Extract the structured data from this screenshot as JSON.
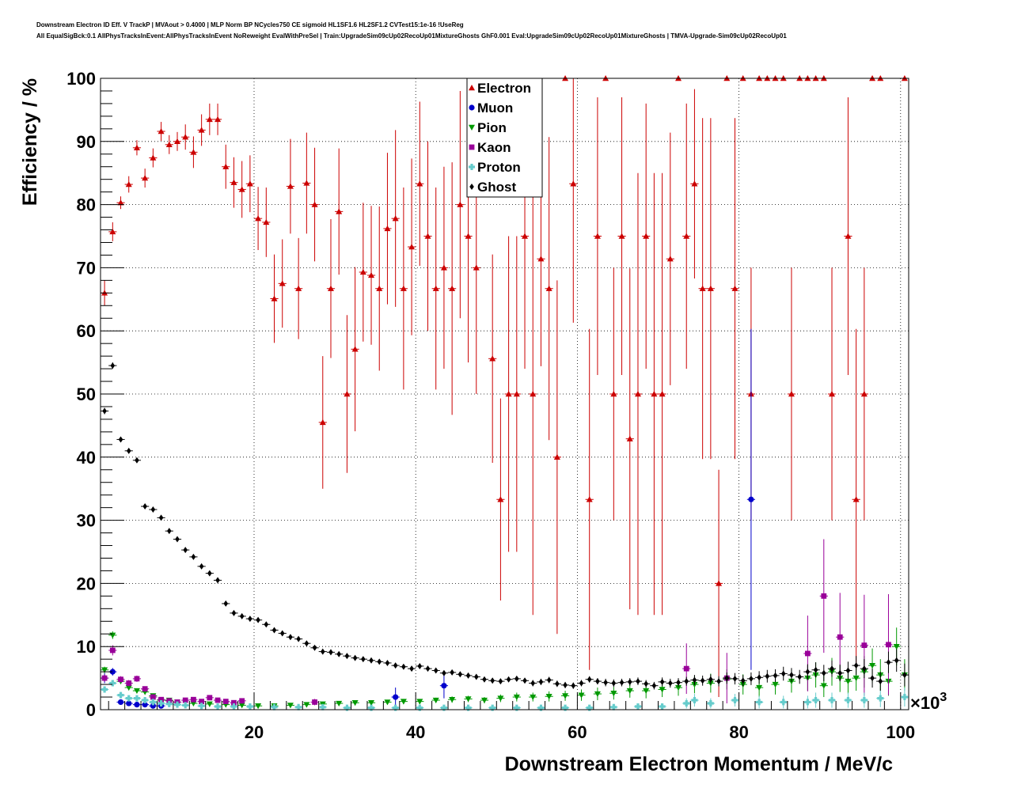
{
  "header": {
    "line1": "Downstream Electron ID Eff. V TrackP | MVAout > 0.4000 | MLP Norm BP NCycles750 CE sigmoid HL1SF1.6 HL2SF1.2 CVTest15:1e-16 !UseReg",
    "line2": "All EqualSigBck:0.1 AllPhysTracksInEvent:AllPhysTracksInEvent NoReweight EvalWithPreSel | Train:UpgradeSim09cUp02RecoUp01MixtureGhosts GhF0.001 Eval:UpgradeSim09cUp02RecoUp01MixtureGhosts | TMVA-Upgrade-Sim09cUp02RecoUp01"
  },
  "chart_data": {
    "type": "scatter",
    "xlabel": "Downstream Electron Momentum / MeV/c",
    "ylabel": "Efficiency / %",
    "x_multiplier": "×10",
    "x_multiplier_exp": "3",
    "xlim": [
      1,
      101
    ],
    "ylim": [
      0,
      100
    ],
    "x_ticks": [
      20,
      40,
      60,
      80,
      100
    ],
    "y_ticks": [
      0,
      10,
      20,
      30,
      40,
      50,
      60,
      70,
      80,
      90,
      100
    ],
    "grid": true,
    "legend_position": "top-center",
    "series": [
      {
        "name": "Electron",
        "color": "#cc0000",
        "marker": "triangle-up",
        "x": [
          1.5,
          2.5,
          3.5,
          4.5,
          5.5,
          6.5,
          7.5,
          8.5,
          9.5,
          10.5,
          11.5,
          12.5,
          13.5,
          14.5,
          15.5,
          16.5,
          17.5,
          18.5,
          19.5,
          20.5,
          21.5,
          22.5,
          23.5,
          24.5,
          25.5,
          26.5,
          27.5,
          28.5,
          29.5,
          30.5,
          31.5,
          32.5,
          33.5,
          34.5,
          35.5,
          36.5,
          37.5,
          38.5,
          39.5,
          40.5,
          41.5,
          42.5,
          43.5,
          44.5,
          45.5,
          46.5,
          47.5,
          49.5,
          50.5,
          51.5,
          52.5,
          53.5,
          54.5,
          55.5,
          56.5,
          57.5,
          58.5,
          59.5,
          61.5,
          62.5,
          63.5,
          64.5,
          65.5,
          66.5,
          67.5,
          68.5,
          69.5,
          70.5,
          71.5,
          72.5,
          73.5,
          74.5,
          75.5,
          76.5,
          77.5,
          78.5,
          79.5,
          80.5,
          81.5,
          82.5,
          83.5,
          84.5,
          85.5,
          86.5,
          87.5,
          88.5,
          89.5,
          90.5,
          91.5,
          93.5,
          94.5,
          95.5,
          96.5,
          97.5,
          100.5
        ],
        "y": [
          66,
          75.7,
          80.3,
          83.2,
          89,
          84.2,
          87.4,
          91.6,
          89.5,
          90,
          90.7,
          88.3,
          91.8,
          93.5,
          93.5,
          86,
          83.5,
          82.4,
          83.3,
          77.8,
          77.2,
          65.1,
          67.5,
          82.9,
          66.7,
          83.4,
          80,
          45.5,
          66.7,
          78.9,
          50,
          57.1,
          69.3,
          68.8,
          66.7,
          76.2,
          77.8,
          66.7,
          73.3,
          83.3,
          75,
          66.7,
          70,
          66.7,
          80,
          75,
          70,
          55.6,
          33.3,
          50,
          50,
          75,
          50,
          71.4,
          66.7,
          40,
          100,
          83.3,
          33.3,
          75,
          100,
          50,
          75,
          42.9,
          50,
          75,
          50,
          50,
          71.4,
          100,
          75,
          83.3,
          66.7,
          66.7,
          20,
          100,
          66.7,
          100,
          50,
          100,
          100,
          100,
          100,
          50,
          100,
          100,
          100,
          100,
          50,
          75,
          33.3,
          50,
          100,
          100,
          100
        ],
        "err": [
          2,
          1.5,
          1,
          1.3,
          1.2,
          1.5,
          1.5,
          1.5,
          1.5,
          1.5,
          2,
          2.5,
          2.5,
          2.5,
          2.5,
          3.5,
          4,
          4.5,
          4.5,
          5,
          5.5,
          7,
          7,
          7.5,
          8,
          8,
          9,
          10.5,
          11,
          10,
          12.5,
          13,
          11,
          11,
          13,
          12,
          14,
          16,
          14,
          13,
          15,
          16,
          16,
          20,
          18,
          20,
          20,
          16.5,
          16,
          25,
          25,
          21,
          35,
          17,
          24,
          28,
          0,
          22,
          27,
          22,
          0,
          20,
          22,
          27,
          35,
          21,
          35,
          35,
          20,
          0,
          21,
          15,
          27,
          27,
          18,
          0,
          27,
          0,
          20,
          0,
          0,
          0,
          0,
          20,
          0,
          0,
          0,
          0,
          20,
          22,
          27,
          20,
          0,
          0,
          0
        ]
      },
      {
        "name": "Muon",
        "color": "#0000cc",
        "marker": "circle",
        "x": [
          1.5,
          2.5,
          3.5,
          4.5,
          5.5,
          6.5,
          7.5,
          8.5,
          37.5,
          43.5,
          81.5
        ],
        "y": [
          5,
          6,
          1.2,
          1,
          0.8,
          0.8,
          0.6,
          0.6,
          2,
          3.8,
          33.3
        ],
        "err": [
          0.8,
          0.6,
          0.3,
          0.3,
          0.3,
          0.3,
          0.3,
          0.3,
          1.5,
          2,
          27
        ]
      },
      {
        "name": "Pion",
        "color": "#009900",
        "marker": "triangle-down",
        "x": [
          1.5,
          2.5,
          3.5,
          4.5,
          5.5,
          6.5,
          7.5,
          8.5,
          9.5,
          10.5,
          12.5,
          14.5,
          16.5,
          18.5,
          20.5,
          22.5,
          24.5,
          26.5,
          28.5,
          30.5,
          32.5,
          34.5,
          36.5,
          38.5,
          40.5,
          42.5,
          44.5,
          46.5,
          48.5,
          50.5,
          52.5,
          54.5,
          56.5,
          58.5,
          60.5,
          62.5,
          64.5,
          66.5,
          68.5,
          70.5,
          72.5,
          74.5,
          76.5,
          78.5,
          80.5,
          82.5,
          84.5,
          86.5,
          88.5,
          89.5,
          90.5,
          91.5,
          92.5,
          93.5,
          94.5,
          95.5,
          96.5,
          97.5,
          98.5,
          99.5,
          100.5
        ],
        "y": [
          6.3,
          11.8,
          4.5,
          3.5,
          3,
          2.8,
          2.2,
          1.5,
          1.5,
          1.2,
          1,
          0.9,
          0.8,
          0.7,
          0.6,
          0.6,
          0.7,
          0.8,
          0.9,
          1,
          1.1,
          1.1,
          1.2,
          1.3,
          1.3,
          1.5,
          1.6,
          1.7,
          1.5,
          1.8,
          2,
          2,
          2.1,
          2.2,
          2.3,
          2.5,
          2.6,
          3,
          3,
          3.2,
          3.5,
          4,
          4.2,
          4.8,
          4,
          3.5,
          4,
          4.5,
          5,
          5.5,
          3.8,
          6,
          5,
          4.5,
          5,
          6,
          7,
          5.5,
          4.5,
          10,
          5.5
        ],
        "err": [
          0.5,
          0.6,
          0.4,
          0.3,
          0.3,
          0.3,
          0.3,
          0.2,
          0.2,
          0.2,
          0.2,
          0.2,
          0.2,
          0.2,
          0.2,
          0.2,
          0.2,
          0.2,
          0.3,
          0.3,
          0.3,
          0.3,
          0.3,
          0.4,
          0.4,
          0.4,
          0.5,
          0.5,
          0.5,
          0.6,
          0.7,
          0.7,
          0.8,
          0.8,
          0.9,
          1,
          1,
          1.1,
          1.2,
          1.2,
          1.3,
          1.4,
          1.5,
          1.6,
          1.6,
          1.5,
          1.6,
          1.8,
          2,
          2,
          1.8,
          2.2,
          2.2,
          2,
          2,
          2.5,
          2.7,
          2.5,
          2.3,
          3,
          2.5
        ]
      },
      {
        "name": "Kaon",
        "color": "#990099",
        "marker": "square",
        "x": [
          1.5,
          2.5,
          3.5,
          4.5,
          5.5,
          6.5,
          7.5,
          8.5,
          9.5,
          10.5,
          11.5,
          12.5,
          13.5,
          14.5,
          15.5,
          16.5,
          17.5,
          18.5,
          27.5,
          73.5,
          78.5,
          88.5,
          90.5,
          92.5,
          95.5,
          98.5
        ],
        "y": [
          5,
          9.4,
          4.8,
          4.2,
          4.9,
          3.3,
          2,
          1.6,
          1.4,
          1.2,
          1.5,
          1.6,
          1.3,
          1.9,
          1.5,
          1.3,
          1.1,
          1.4,
          1.2,
          6.5,
          5,
          8.9,
          18,
          11.5,
          10.2,
          10.3
        ],
        "err": [
          0.6,
          0.8,
          0.5,
          0.5,
          0.5,
          0.4,
          0.3,
          0.3,
          0.3,
          0.3,
          0.3,
          0.3,
          0.3,
          0.3,
          0.3,
          0.3,
          0.3,
          0.3,
          0.5,
          4,
          4,
          6,
          9,
          7,
          8,
          8
        ]
      },
      {
        "name": "Proton",
        "color": "#66cccc",
        "marker": "cross",
        "x": [
          1.5,
          2.5,
          3.5,
          4.5,
          5.5,
          6.5,
          7.5,
          8.5,
          9.5,
          10.5,
          11.5,
          13.5,
          15.5,
          17.5,
          19.5,
          22.5,
          25.5,
          28.5,
          31.5,
          34.5,
          37.5,
          40.5,
          43.5,
          46.5,
          49.5,
          52.5,
          55.5,
          58.5,
          61.5,
          64.5,
          67.5,
          70.5,
          73.5,
          74.5,
          76.5,
          79.5,
          82.5,
          85.5,
          88.5,
          89.5,
          91.5,
          93.5,
          95.5,
          97.5,
          100.5
        ],
        "y": [
          3.2,
          4.2,
          2.3,
          1.8,
          1.8,
          1.5,
          1.2,
          1,
          0.9,
          0.8,
          0.7,
          0.6,
          0.5,
          0.5,
          0.5,
          0.4,
          0.4,
          0.4,
          0.3,
          0.3,
          0.3,
          0.3,
          0.3,
          0.3,
          0.3,
          0.3,
          0.3,
          0.3,
          0.3,
          0.4,
          0.5,
          0.5,
          1,
          1.5,
          1,
          1.5,
          1.2,
          1.2,
          1.2,
          1.5,
          1.5,
          1.5,
          1.5,
          1.8,
          2
        ],
        "err": [
          0.5,
          0.5,
          0.3,
          0.3,
          0.3,
          0.2,
          0.2,
          0.2,
          0.2,
          0.2,
          0.2,
          0.2,
          0.2,
          0.2,
          0.2,
          0.2,
          0.2,
          0.2,
          0.2,
          0.2,
          0.2,
          0.2,
          0.2,
          0.2,
          0.2,
          0.2,
          0.2,
          0.2,
          0.2,
          0.3,
          0.4,
          0.4,
          0.8,
          1,
          0.8,
          1,
          1,
          1,
          1,
          1.2,
          1.2,
          1.2,
          1.2,
          1.4,
          1.5
        ]
      },
      {
        "name": "Ghost",
        "color": "#000000",
        "marker": "diamond",
        "x": [
          1.5,
          2.5,
          3.5,
          4.5,
          5.5,
          6.5,
          7.5,
          8.5,
          9.5,
          10.5,
          11.5,
          12.5,
          13.5,
          14.5,
          15.5,
          16.5,
          17.5,
          18.5,
          19.5,
          20.5,
          21.5,
          22.5,
          23.5,
          24.5,
          25.5,
          26.5,
          27.5,
          28.5,
          29.5,
          30.5,
          31.5,
          32.5,
          33.5,
          34.5,
          35.5,
          36.5,
          37.5,
          38.5,
          39.5,
          40.5,
          41.5,
          42.5,
          43.5,
          44.5,
          45.5,
          46.5,
          47.5,
          48.5,
          49.5,
          50.5,
          51.5,
          52.5,
          53.5,
          54.5,
          55.5,
          56.5,
          57.5,
          58.5,
          59.5,
          60.5,
          61.5,
          62.5,
          63.5,
          64.5,
          65.5,
          66.5,
          67.5,
          68.5,
          69.5,
          70.5,
          71.5,
          72.5,
          73.5,
          74.5,
          75.5,
          76.5,
          77.5,
          78.5,
          79.5,
          80.5,
          81.5,
          82.5,
          83.5,
          84.5,
          85.5,
          86.5,
          87.5,
          88.5,
          89.5,
          90.5,
          91.5,
          92.5,
          93.5,
          94.5,
          95.5,
          96.5,
          97.5,
          98.5,
          99.5,
          100.5
        ],
        "y": [
          47.3,
          54.5,
          42.8,
          41,
          39.5,
          32.2,
          31.7,
          30.4,
          28.3,
          27,
          25.3,
          24.2,
          22.7,
          21.6,
          20.5,
          16.8,
          15.3,
          14.8,
          14.4,
          14.2,
          13.5,
          12.6,
          12.1,
          11.5,
          11.2,
          10.5,
          9.8,
          9.2,
          9.1,
          8.8,
          8.5,
          8.2,
          8,
          7.8,
          7.6,
          7.4,
          7,
          6.8,
          6.5,
          6.9,
          6.5,
          6.2,
          5.8,
          5.9,
          5.6,
          5.4,
          5.2,
          4.8,
          4.6,
          4.5,
          4.8,
          4.9,
          4.6,
          4.2,
          4.4,
          4.7,
          4.1,
          3.9,
          3.8,
          4.2,
          4.8,
          4.5,
          4.3,
          4.2,
          4.3,
          4.4,
          4.5,
          4.1,
          3.8,
          4.4,
          4.2,
          4.3,
          4.5,
          4.7,
          4.6,
          4.8,
          4.5,
          5,
          4.9,
          4.6,
          4.9,
          5.1,
          5.3,
          5.4,
          5.7,
          5.5,
          5.2,
          6,
          6.3,
          5.8,
          6.5,
          5.8,
          6.2,
          7,
          6.5,
          5,
          4.5,
          7.5,
          7.8,
          5.5
        ],
        "err": [
          0.5,
          0.5,
          0.4,
          0.4,
          0.4,
          0.3,
          0.3,
          0.3,
          0.3,
          0.3,
          0.3,
          0.3,
          0.3,
          0.3,
          0.3,
          0.3,
          0.3,
          0.3,
          0.3,
          0.3,
          0.3,
          0.3,
          0.3,
          0.3,
          0.3,
          0.3,
          0.3,
          0.3,
          0.3,
          0.3,
          0.3,
          0.3,
          0.3,
          0.3,
          0.3,
          0.3,
          0.3,
          0.3,
          0.3,
          0.3,
          0.3,
          0.3,
          0.3,
          0.3,
          0.3,
          0.4,
          0.4,
          0.4,
          0.4,
          0.4,
          0.4,
          0.4,
          0.4,
          0.5,
          0.5,
          0.5,
          0.5,
          0.5,
          0.5,
          0.5,
          0.5,
          0.5,
          0.6,
          0.6,
          0.6,
          0.6,
          0.6,
          0.6,
          0.6,
          0.7,
          0.7,
          0.7,
          0.7,
          0.8,
          0.8,
          0.8,
          0.8,
          0.9,
          0.9,
          0.9,
          1,
          1,
          1,
          1,
          1.1,
          1.1,
          1.1,
          1.2,
          1.2,
          1.3,
          1.3,
          1.3,
          1.4,
          1.5,
          1.5,
          1.5,
          1.5,
          1.7,
          1.8,
          1.8
        ]
      }
    ]
  }
}
